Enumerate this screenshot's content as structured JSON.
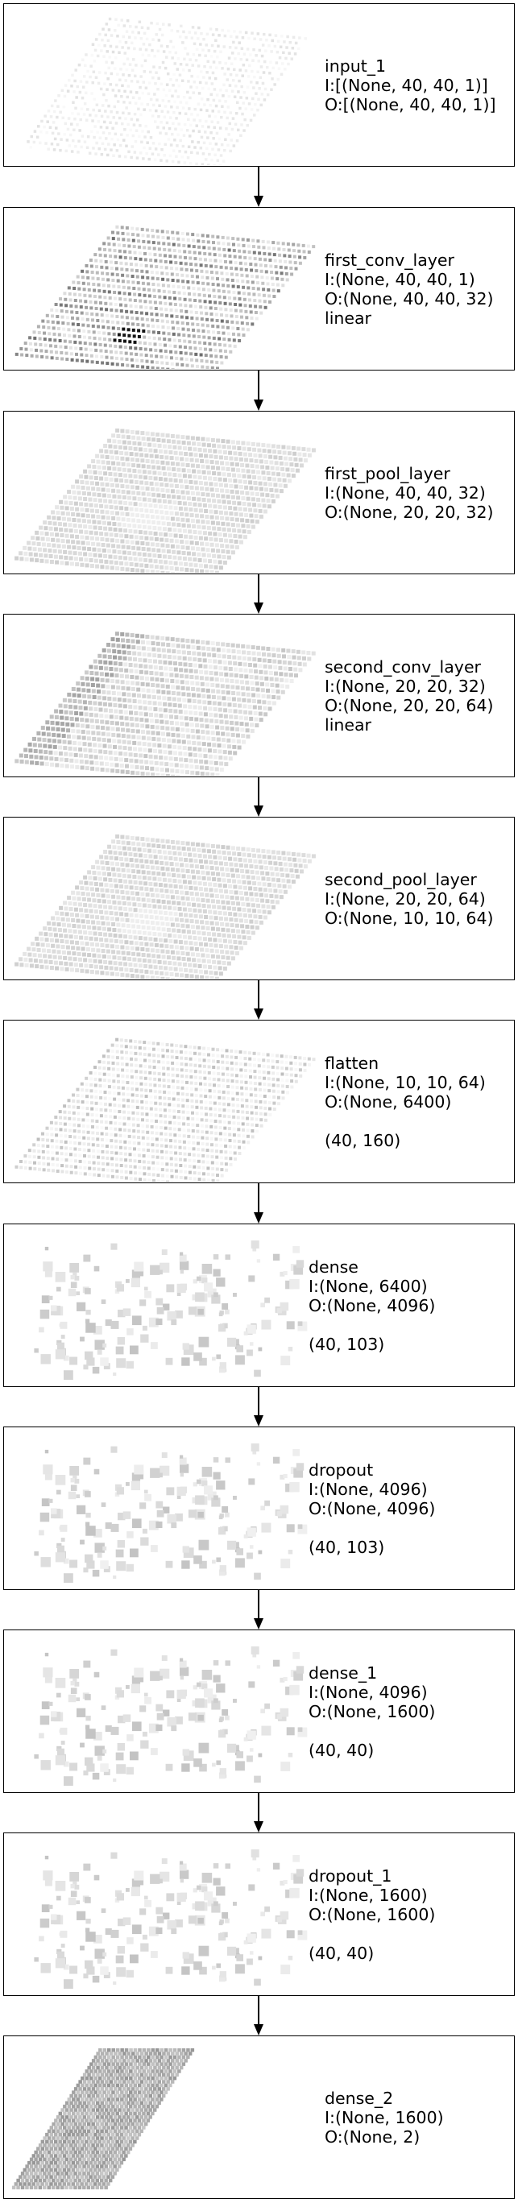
{
  "layers": [
    {
      "name": "input_1",
      "input": "I:[(None, 40, 40, 1)]",
      "output": "O:[(None, 40, 40, 1)]",
      "activation": "",
      "shape": "",
      "viz": "grid-faint"
    },
    {
      "name": "first_conv_layer",
      "input": "I:(None, 40, 40, 1)",
      "output": "O:(None, 40, 40, 32)",
      "activation": "linear",
      "shape": "",
      "viz": "grid-dark"
    },
    {
      "name": "first_pool_layer",
      "input": "I:(None, 40, 40, 32)",
      "output": "O:(None, 20, 20, 32)",
      "activation": "",
      "shape": "",
      "viz": "grid-light"
    },
    {
      "name": "second_conv_layer",
      "input": "I:(None, 20, 20, 32)",
      "output": "O:(None, 20, 20, 64)",
      "activation": "linear",
      "shape": "",
      "viz": "grid-medium"
    },
    {
      "name": "second_pool_layer",
      "input": "I:(None, 20, 20, 64)",
      "output": "O:(None, 10, 10, 64)",
      "activation": "",
      "shape": "",
      "viz": "grid-light"
    },
    {
      "name": "flatten",
      "input": "I:(None, 10, 10, 64)",
      "output": "O:(None, 6400)",
      "activation": "",
      "shape": "(40, 160)",
      "viz": "grid-stripes"
    },
    {
      "name": "dense",
      "input": "I:(None, 6400)",
      "output": "O:(None, 4096)",
      "activation": "",
      "shape": "(40, 103)",
      "viz": "scatter"
    },
    {
      "name": "dropout",
      "input": "I:(None, 4096)",
      "output": "O:(None, 4096)",
      "activation": "",
      "shape": "(40, 103)",
      "viz": "scatter"
    },
    {
      "name": "dense_1",
      "input": "I:(None, 4096)",
      "output": "O:(None, 1600)",
      "activation": "",
      "shape": "(40, 40)",
      "viz": "scatter"
    },
    {
      "name": "dropout_1",
      "input": "I:(None, 1600)",
      "output": "O:(None, 1600)",
      "activation": "",
      "shape": "(40, 40)",
      "viz": "scatter"
    },
    {
      "name": "dense_2",
      "input": "I:(None, 1600)",
      "output": "O:(None, 2)",
      "activation": "",
      "shape": "",
      "viz": "block"
    }
  ]
}
